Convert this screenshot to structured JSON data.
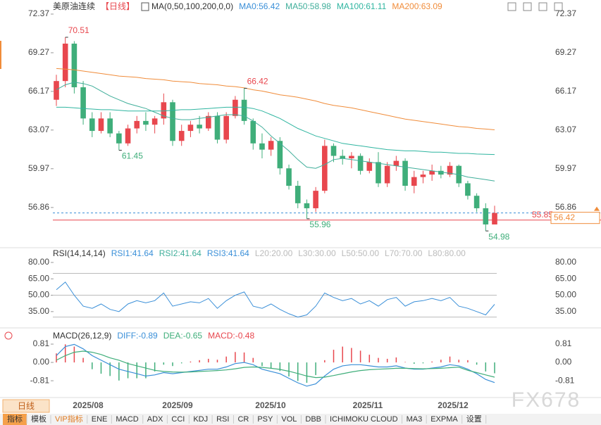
{
  "chart_data": [
    {
      "type": "candlestick",
      "title": "美原油连续",
      "period": "【日线】",
      "indicator": "MA(0,50,100,200,0,0)",
      "open": [
        65.5,
        67,
        70,
        66.5,
        64,
        63,
        64,
        62.8,
        62,
        63.2,
        63.8,
        63.5,
        64,
        65.3,
        62.2,
        63,
        63.5,
        63.2,
        64.2,
        62.3,
        64.2,
        65.5,
        63.8,
        62,
        61.5,
        62.2,
        60,
        58.6,
        57.2,
        56.8,
        58.2,
        61.8,
        61,
        60.8,
        61,
        59.8,
        60.5,
        58.8,
        60.2,
        60.6,
        58.6,
        59.3,
        59.5,
        59.8,
        59.5,
        60.2,
        58.8,
        57.8,
        56.8,
        55.5
      ],
      "high": [
        67.5,
        70.51,
        70.2,
        67,
        64.5,
        64.5,
        64.5,
        63,
        63.5,
        64.2,
        64.5,
        64.2,
        66,
        65.5,
        63.5,
        63.8,
        64.2,
        64.5,
        64.5,
        64.5,
        65.8,
        66.42,
        64,
        62.8,
        62.5,
        62.5,
        60.3,
        59,
        57.5,
        58.5,
        62.3,
        62,
        61.5,
        61.3,
        61.2,
        60.8,
        61.3,
        60.5,
        61,
        60.8,
        59.8,
        59.8,
        60.3,
        60.2,
        60.5,
        60.3,
        59,
        58,
        57.2,
        57
      ],
      "low": [
        65,
        66.5,
        66,
        63.5,
        62.5,
        62.8,
        62.5,
        61.45,
        61.8,
        62.8,
        63,
        62.8,
        63.5,
        61.8,
        61.8,
        62.5,
        62.8,
        63,
        62,
        62,
        64,
        63.5,
        61.5,
        60.8,
        61,
        59.5,
        58.3,
        56.8,
        55.96,
        56.5,
        58,
        60.5,
        60.3,
        60,
        59.5,
        59.6,
        58.5,
        58.5,
        59.8,
        58.2,
        58,
        58.8,
        59,
        59.2,
        59.3,
        58.5,
        57.5,
        56.5,
        54.98,
        55.5
      ],
      "close": [
        67,
        70,
        66.5,
        64,
        63,
        64,
        62.8,
        62,
        63.2,
        63.8,
        63.5,
        64,
        65.3,
        62.2,
        63,
        63.5,
        63.2,
        64.2,
        62.3,
        64.2,
        65.5,
        63.8,
        62,
        61.5,
        62.2,
        60,
        58.6,
        57.2,
        56.8,
        58.2,
        61.8,
        61,
        60.8,
        61,
        59.8,
        60.5,
        58.8,
        60.2,
        60.6,
        58.6,
        59.3,
        59.5,
        59.8,
        59.5,
        60.2,
        58.8,
        57.8,
        56.8,
        55.5,
        56.42
      ],
      "up_color": "#e8474e",
      "down_color": "#3fae7a",
      "series": [
        {
          "name": "MA0:56.42",
          "color": "#3a8fd8"
        },
        {
          "name": "MA50:58.98",
          "color": "#3fae9a",
          "values": [
            66.3,
            66.7,
            66.9,
            66.8,
            66.6,
            66.2,
            65.8,
            65.5,
            65.2,
            65.0,
            64.8,
            64.5,
            64.2,
            64.0,
            63.9,
            63.9,
            64.0,
            64.1,
            64.2,
            64.3,
            64.3,
            64.2,
            63.8,
            63.3,
            62.6,
            62.0,
            61.4,
            60.7,
            60.1,
            60.0,
            60.3,
            60.7,
            60.8,
            60.7,
            60.6,
            60.5,
            60.4,
            60.3,
            60.2,
            60.1,
            60.0,
            59.9,
            59.8,
            59.7,
            59.6,
            59.5,
            59.3,
            59.2,
            59.1,
            58.98
          ]
        },
        {
          "name": "MA100:61.11",
          "color": "#2fb5a0",
          "values": [
            64.9,
            64.9,
            64.85,
            64.8,
            64.75,
            64.7,
            64.7,
            64.65,
            64.6,
            64.6,
            64.6,
            64.6,
            64.6,
            64.65,
            64.7,
            64.7,
            64.75,
            64.8,
            64.85,
            64.9,
            64.9,
            64.9,
            64.8,
            64.6,
            64.3,
            64.0,
            63.6,
            63.2,
            62.9,
            62.6,
            62.4,
            62.2,
            62.0,
            61.9,
            61.8,
            61.7,
            61.6,
            61.5,
            61.45,
            61.4,
            61.4,
            61.35,
            61.3,
            61.3,
            61.25,
            61.2,
            61.2,
            61.15,
            61.13,
            61.11
          ]
        },
        {
          "name": "MA200:63.09",
          "color": "#f08c3a",
          "values": [
            68.0,
            67.95,
            67.9,
            67.8,
            67.7,
            67.6,
            67.5,
            67.4,
            67.35,
            67.3,
            67.2,
            67.15,
            67.1,
            67.0,
            66.95,
            66.9,
            66.8,
            66.75,
            66.7,
            66.6,
            66.55,
            66.45,
            66.3,
            66.2,
            66.05,
            65.9,
            65.8,
            65.7,
            65.55,
            65.4,
            65.2,
            65.05,
            64.95,
            64.85,
            64.7,
            64.55,
            64.4,
            64.25,
            64.1,
            63.95,
            63.85,
            63.75,
            63.65,
            63.55,
            63.45,
            63.35,
            63.3,
            63.2,
            63.15,
            63.09
          ]
        }
      ],
      "price_lines": [
        {
          "value": 55.85,
          "color": "#e8474e"
        },
        {
          "value": 56.42,
          "color": "#3a8fd8"
        }
      ],
      "ylim": [
        53.75,
        72.37
      ],
      "yticks": [
        72.37,
        69.27,
        66.17,
        63.07,
        59.97,
        56.86
      ]
    },
    {
      "type": "line",
      "title": "RSI(14,14,14)",
      "series": [
        {
          "name": "RSI1:41.64",
          "color": "#3a8fd8",
          "values": [
            55,
            62,
            50,
            40,
            38,
            42,
            37,
            35,
            42,
            45,
            43,
            45,
            52,
            40,
            42,
            44,
            43,
            47,
            38,
            45,
            50,
            53,
            40,
            38,
            42,
            37,
            33,
            30,
            32,
            40,
            52,
            48,
            45,
            47,
            42,
            45,
            40,
            46,
            48,
            40,
            44,
            45,
            47,
            45,
            48,
            40,
            38,
            35,
            32,
            41.64
          ]
        },
        {
          "name": "RSI2:41.64",
          "color": "#3fae9a"
        },
        {
          "name": "RSI3:41.64",
          "color": "#3a8fd8"
        }
      ],
      "levels": [
        "L20:20.00",
        "L30:30.00",
        "L50:50.00",
        "L70:70.00",
        "L80:80.00"
      ],
      "ref_lines": [
        30,
        50,
        70
      ],
      "ylim": [
        22,
        91.6
      ],
      "yticks": [
        {
          "value": 80,
          "label": "80.00"
        },
        {
          "value": 65,
          "label": "65.00"
        },
        {
          "value": 50,
          "label": "50.00"
        },
        {
          "value": 35,
          "label": "35.00"
        }
      ]
    },
    {
      "type": "macd",
      "title": "MACD(26,12,9)",
      "series": [
        {
          "name": "DIFF:-0.89",
          "color": "#3a8fd8",
          "values": [
            0.3,
            0.7,
            0.8,
            0.6,
            0.3,
            0.1,
            -0.1,
            -0.3,
            -0.4,
            -0.5,
            -0.6,
            -0.55,
            -0.45,
            -0.5,
            -0.45,
            -0.4,
            -0.35,
            -0.3,
            -0.3,
            -0.2,
            -0.05,
            0.0,
            -0.1,
            -0.3,
            -0.4,
            -0.5,
            -0.7,
            -0.9,
            -1.05,
            -0.95,
            -0.6,
            -0.3,
            -0.15,
            -0.1,
            -0.1,
            -0.15,
            -0.2,
            -0.2,
            -0.15,
            -0.25,
            -0.3,
            -0.3,
            -0.25,
            -0.2,
            -0.1,
            -0.15,
            -0.3,
            -0.5,
            -0.75,
            -0.89
          ]
        },
        {
          "name": "DEA:-0.65",
          "color": "#3fae7a",
          "values": [
            0.1,
            0.3,
            0.45,
            0.5,
            0.45,
            0.35,
            0.2,
            0.1,
            -0.05,
            -0.15,
            -0.25,
            -0.35,
            -0.4,
            -0.42,
            -0.43,
            -0.42,
            -0.4,
            -0.38,
            -0.36,
            -0.33,
            -0.28,
            -0.22,
            -0.2,
            -0.22,
            -0.26,
            -0.31,
            -0.39,
            -0.49,
            -0.6,
            -0.67,
            -0.65,
            -0.58,
            -0.5,
            -0.42,
            -0.36,
            -0.32,
            -0.3,
            -0.28,
            -0.26,
            -0.26,
            -0.27,
            -0.28,
            -0.27,
            -0.26,
            -0.23,
            -0.21,
            -0.35,
            -0.45,
            -0.55,
            -0.65
          ]
        }
      ],
      "histogram": {
        "name": "MACD:-0.48",
        "color": "#e8474e",
        "up_color": "#e8474e",
        "down_color": "#3fae7a",
        "values": [
          0.4,
          0.8,
          0.7,
          0.2,
          -0.3,
          -0.5,
          -0.6,
          -0.8,
          -0.7,
          -0.7,
          -0.7,
          -0.4,
          -0.1,
          -0.16,
          -0.04,
          0.04,
          0.1,
          0.16,
          0.12,
          0.26,
          0.46,
          0.44,
          0.2,
          -0.16,
          -0.28,
          -0.38,
          -0.62,
          -0.82,
          -0.9,
          -0.56,
          0.1,
          0.56,
          0.7,
          0.64,
          0.52,
          0.34,
          0.2,
          0.16,
          0.22,
          0.02,
          -0.06,
          -0.04,
          0.04,
          0.12,
          0.26,
          0.12,
          0.1,
          -0.1,
          -0.4,
          -0.48
        ]
      },
      "ylim": [
        -1.46,
        1.34
      ],
      "yticks": [
        0.81,
        {
          "value": 0,
          "label": "0.00"
        },
        -0.81
      ]
    }
  ],
  "x_labels": [
    "2025/08",
    "2025/09",
    "2025/10",
    "2025/11",
    "2025/12"
  ],
  "toolbar": {
    "period": "日线",
    "tabs": [
      "指标",
      "模板",
      "VIP指标",
      "ENE",
      "MACD",
      "ADX",
      "CCI",
      "KDJ",
      "RSI",
      "CR",
      "PSY",
      "VOL",
      "DBB",
      "ICHIMOKU CLOUD",
      "MA3",
      "EXPMA",
      "设置"
    ]
  },
  "watermark": "FX678"
}
